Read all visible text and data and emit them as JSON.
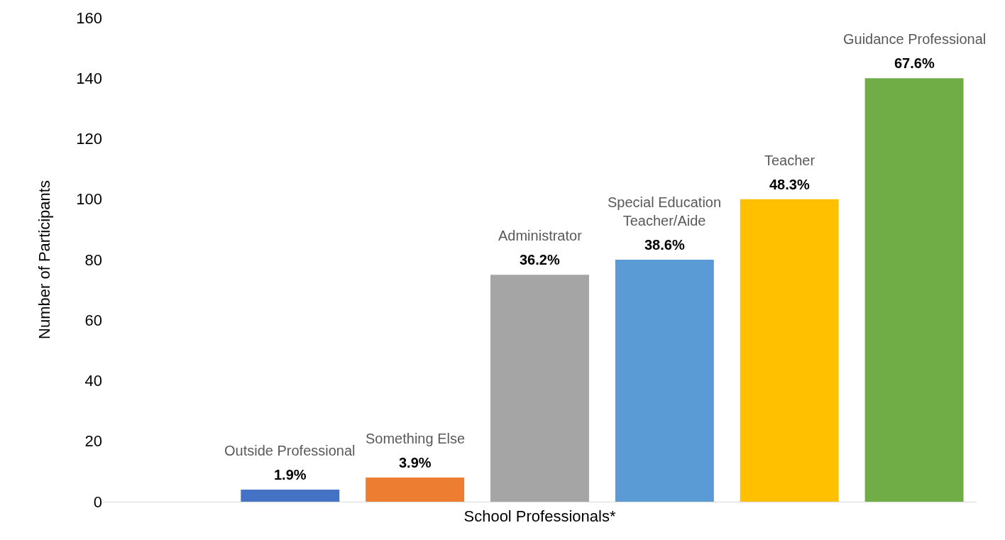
{
  "chart_data": {
    "type": "bar",
    "xlabel": "School Professionals*",
    "ylabel": "Number of Participants",
    "categories": [
      null,
      "Outside Professional",
      "Something Else",
      "Administrator",
      "Special Education\nTeacher/Aide",
      "Teacher",
      "Guidance Professional"
    ],
    "values": [
      null,
      4,
      8,
      75,
      80,
      100,
      140
    ],
    "colors": [
      "#4472c4",
      "#4472c4",
      "#ed7d31",
      "#a5a5a5",
      "#5b9bd5",
      "#ffc000",
      "#70ad47"
    ],
    "annotations": [
      {
        "text": "1.9%",
        "x": "Outside Professional",
        "y": 4
      },
      {
        "text": "3.9%",
        "x": "Something Else",
        "y": 8
      },
      {
        "text": "36.2%",
        "x": "Administrator",
        "y": 75
      },
      {
        "text": "38.6%",
        "x": "Special Education\nTeacher/Aide",
        "y": 80
      },
      {
        "text": "48.3%",
        "x": "Teacher",
        "y": 100
      },
      {
        "text": "67.6%",
        "x": "Guidance Professional",
        "y": 140
      }
    ],
    "ylim": [
      0,
      160
    ],
    "yticks": [
      0,
      20,
      40,
      60,
      80,
      100,
      120,
      140,
      160
    ]
  }
}
